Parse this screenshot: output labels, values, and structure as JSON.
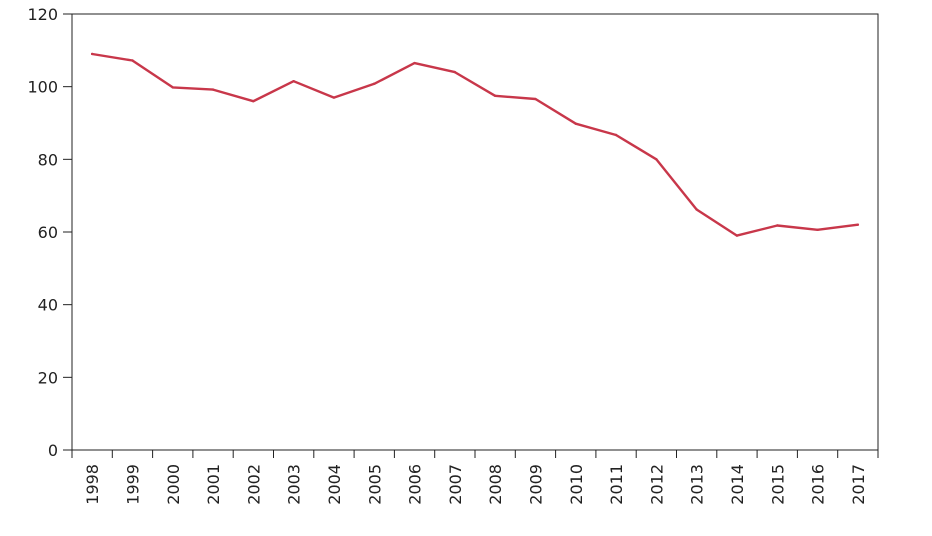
{
  "chart_data": {
    "type": "line",
    "title": "",
    "xlabel": "",
    "ylabel": "",
    "categories": [
      "1998",
      "1999",
      "2000",
      "2001",
      "2002",
      "2003",
      "2004",
      "2005",
      "2006",
      "2007",
      "2008",
      "2009",
      "2010",
      "2011",
      "2012",
      "2013",
      "2014",
      "2015",
      "2016",
      "2017"
    ],
    "series": [
      {
        "values": [
          109,
          107.2,
          99.8,
          99.2,
          96,
          101.5,
          97,
          100.8,
          106.5,
          104,
          97.5,
          96.6,
          89.8,
          86.7,
          80,
          66.2,
          59,
          61.8,
          60.6,
          62
        ],
        "color": "#c8374a"
      }
    ],
    "ylim": [
      0,
      120
    ],
    "yticks": [
      "0",
      "20",
      "40",
      "60",
      "80",
      "100",
      "120"
    ],
    "grid": false,
    "legend": "none"
  }
}
